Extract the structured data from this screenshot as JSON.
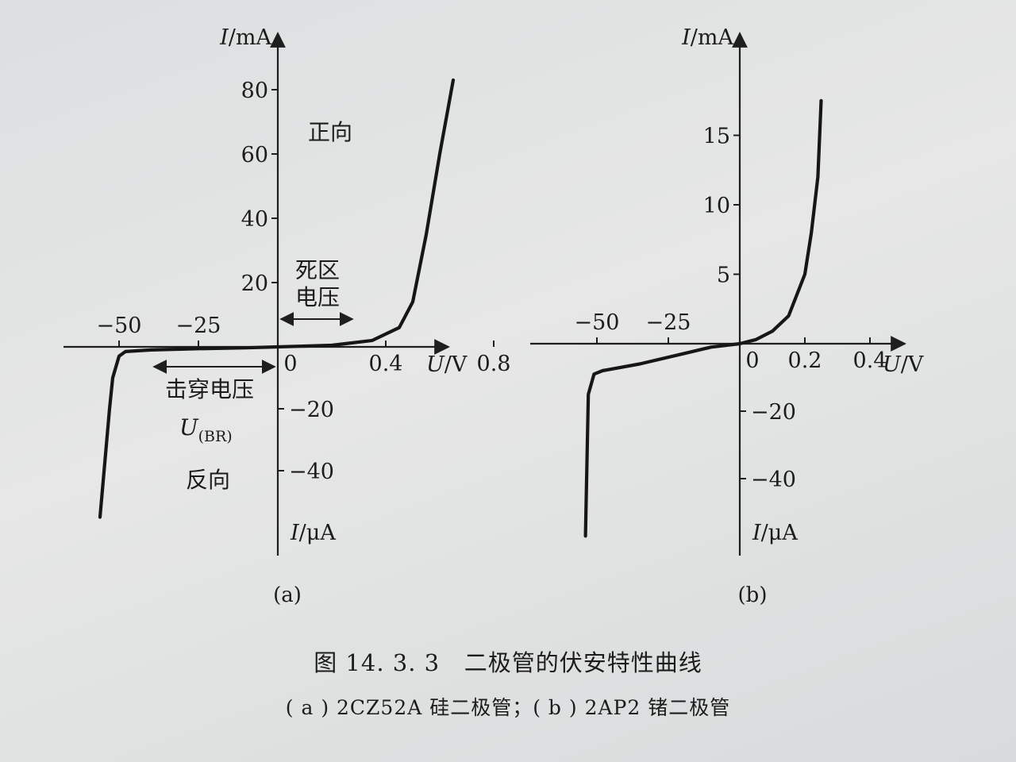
{
  "figure": {
    "caption_title": "图 14. 3. 3   二极管的伏安特性曲线",
    "caption_subtitle": "( a ) 2CZ52A 硅二极管；( b ) 2AP2 锗二极管"
  },
  "chart_data": [
    {
      "type": "line",
      "panel_label": "(a)",
      "description": "2CZ52A 硅二极管",
      "y_axis_positive_label": "I/mA",
      "y_axis_negative_label": "I/μA",
      "x_axis_label": "U/V",
      "x_ticks_positive": [
        "0",
        "0.4",
        "0.8"
      ],
      "x_ticks_negative": [
        "−50",
        "−25"
      ],
      "y_ticks_positive": [
        "20",
        "40",
        "60",
        "80"
      ],
      "y_ticks_negative": [
        "−20",
        "−40"
      ],
      "x_positive_range_V": [
        0,
        0.9
      ],
      "x_negative_range_V": [
        -60,
        0
      ],
      "y_positive_range_mA": [
        0,
        85
      ],
      "y_negative_range_uA": [
        -60,
        0
      ],
      "forward_curve": {
        "x_V": [
          0,
          0.2,
          0.35,
          0.45,
          0.5,
          0.55,
          0.6,
          0.65
        ],
        "y_mA": [
          0,
          0.5,
          2,
          6,
          14,
          35,
          60,
          83
        ]
      },
      "reverse_curve": {
        "x_V": [
          0,
          -10,
          -25,
          -40,
          -48,
          -50,
          -52,
          -53,
          -56
        ],
        "y_uA": [
          0,
          -0.3,
          -0.6,
          -1,
          -1.5,
          -3,
          -10,
          -20,
          -55
        ]
      },
      "annotations": {
        "forward": "正向",
        "reverse": "反向",
        "dead_zone_line1": "死区",
        "dead_zone_line2": "电压",
        "breakdown": "击穿电压",
        "breakdown_symbol": "U",
        "breakdown_subscript": "(BR)"
      }
    },
    {
      "type": "line",
      "panel_label": "(b)",
      "description": "2AP2 锗二极管",
      "y_axis_positive_label": "I/mA",
      "y_axis_negative_label": "I/μA",
      "x_axis_label": "U/V",
      "x_ticks_positive": [
        "0",
        "0.2",
        "0.4"
      ],
      "x_ticks_negative": [
        "−50",
        "−25"
      ],
      "y_ticks_positive": [
        "5",
        "10",
        "15"
      ],
      "y_ticks_negative": [
        "−20",
        "−40"
      ],
      "x_positive_range_V": [
        0,
        0.5
      ],
      "x_negative_range_V": [
        -60,
        0
      ],
      "y_positive_range_mA": [
        0,
        17.5
      ],
      "y_negative_range_uA": [
        -60,
        0
      ],
      "forward_curve": {
        "x_V": [
          0,
          0.05,
          0.1,
          0.15,
          0.2,
          0.22,
          0.24,
          0.25
        ],
        "y_mA": [
          0,
          0.3,
          0.9,
          2,
          5,
          8,
          12,
          17.5
        ]
      },
      "reverse_curve": {
        "x_V": [
          0,
          -10,
          -20,
          -35,
          -48,
          -51,
          -53,
          -54
        ],
        "y_uA": [
          0,
          -1,
          -3,
          -6,
          -8,
          -9,
          -15,
          -57
        ]
      }
    }
  ]
}
